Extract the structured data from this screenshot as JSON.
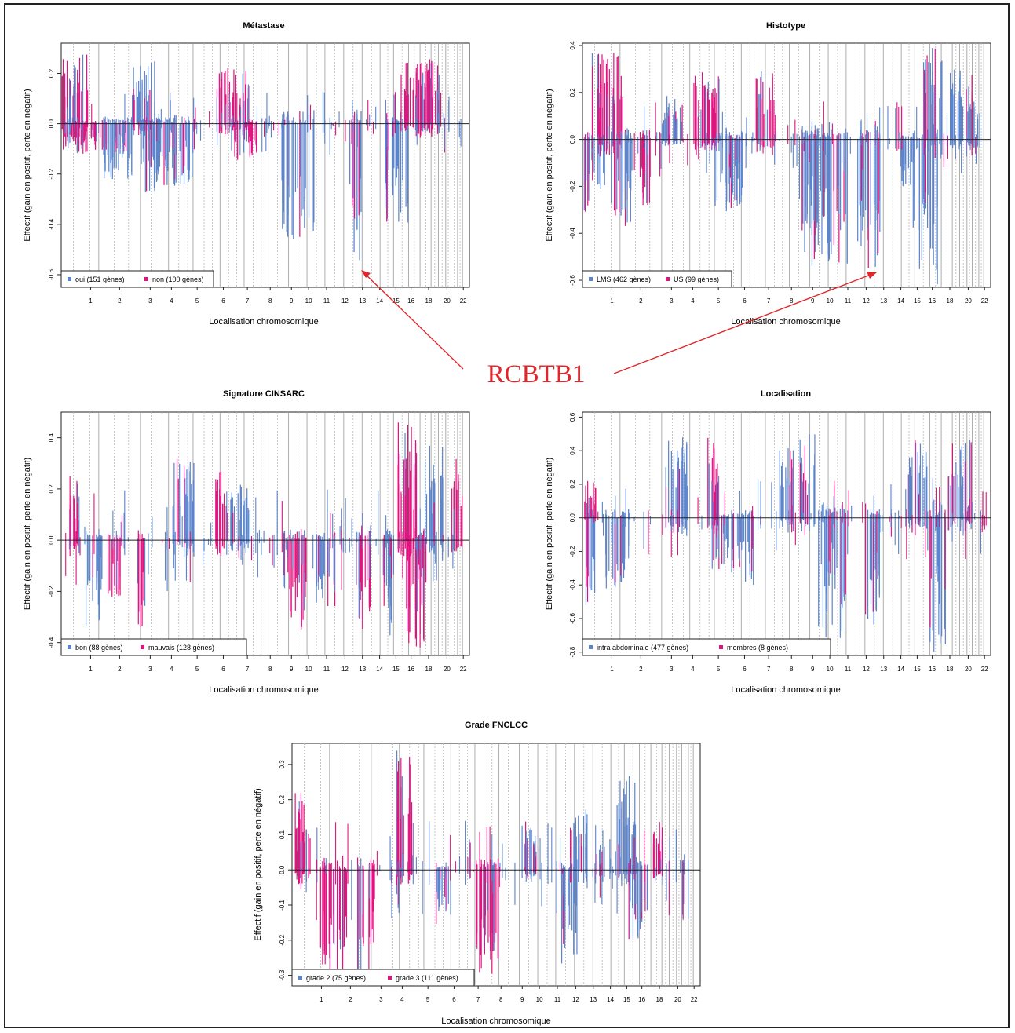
{
  "chart_data": [
    {
      "type": "bar",
      "title": "Métastase",
      "xlabel": "Localisation chromosomique",
      "ylabel": "Effectif (gain en positif, perte en négatif)",
      "ylim": [
        -0.65,
        0.32
      ],
      "yticks": [
        -0.6,
        -0.4,
        -0.2,
        0.0,
        0.2
      ],
      "ytick_labels": [
        "-0.6",
        "-0.4",
        "-0.2",
        "0.0",
        "0.2"
      ],
      "xticks": [
        "1",
        "2",
        "3",
        "4",
        "5",
        "6",
        "7",
        "8",
        "9",
        "10",
        "11",
        "12",
        "13",
        "14",
        "15",
        "16",
        "18",
        "20",
        "22"
      ],
      "legend": "bottom-left",
      "series": [
        {
          "name": "oui (151 gènes)",
          "color": "#5b84cc"
        },
        {
          "name": "non (100 gènes)",
          "color": "#e0147f"
        }
      ],
      "annotated_gene_value": -0.6
    },
    {
      "type": "bar",
      "title": "Histotype",
      "xlabel": "Localisation chromosomique",
      "ylabel": "Effectif (gain en positif, perte en négatif)",
      "ylim": [
        -0.63,
        0.41
      ],
      "yticks": [
        -0.6,
        -0.4,
        -0.2,
        0.0,
        0.2,
        0.4
      ],
      "ytick_labels": [
        "-0.6",
        "-0.4",
        "-0.2",
        "0.0",
        "0.2",
        "0.4"
      ],
      "xticks": [
        "1",
        "2",
        "3",
        "4",
        "5",
        "6",
        "7",
        "8",
        "9",
        "10",
        "11",
        "12",
        "13",
        "14",
        "15",
        "16",
        "18",
        "20",
        "22"
      ],
      "legend": "bottom-left",
      "series": [
        {
          "name": "LMS (462 gènes)",
          "color": "#5b84cc"
        },
        {
          "name": "US (99 gènes)",
          "color": "#e0147f"
        }
      ],
      "annotated_gene_value": -0.57
    },
    {
      "type": "bar",
      "title": "Signature CINSARC",
      "xlabel": "Localisation chromosomique",
      "ylabel": "Effectif (gain en positif, perte en négatif)",
      "ylim": [
        -0.45,
        0.5
      ],
      "yticks": [
        -0.4,
        -0.2,
        0.0,
        0.2,
        0.4
      ],
      "ytick_labels": [
        "-0.4",
        "-0.2",
        "0.0",
        "0.2",
        "0.4"
      ],
      "xticks": [
        "1",
        "2",
        "3",
        "4",
        "5",
        "6",
        "7",
        "8",
        "9",
        "10",
        "11",
        "12",
        "13",
        "14",
        "15",
        "16",
        "18",
        "20",
        "22"
      ],
      "legend": "bottom-left",
      "series": [
        {
          "name": "bon (88 gènes)",
          "color": "#5b84cc"
        },
        {
          "name": "mauvais (128 gènes)",
          "color": "#e0147f"
        }
      ]
    },
    {
      "type": "bar",
      "title": "Localisation",
      "xlabel": "Localisation chromosomique",
      "ylabel": "Effectif (gain en positif, perte en négatif)",
      "ylim": [
        -0.82,
        0.63
      ],
      "yticks": [
        -0.8,
        -0.6,
        -0.4,
        -0.2,
        0.0,
        0.2,
        0.4,
        0.6
      ],
      "ytick_labels": [
        "-0.8",
        "-0.6",
        "-0.4",
        "-0.2",
        "0.0",
        "0.2",
        "0.4",
        "0.6"
      ],
      "xticks": [
        "1",
        "2",
        "3",
        "4",
        "5",
        "6",
        "7",
        "8",
        "9",
        "10",
        "11",
        "12",
        "13",
        "14",
        "15",
        "16",
        "18",
        "20",
        "22"
      ],
      "legend": "bottom-left",
      "series": [
        {
          "name": "intra abdominale (477 gènes)",
          "color": "#5b84cc"
        },
        {
          "name": "membres (8 gènes)",
          "color": "#e0147f"
        }
      ]
    },
    {
      "type": "bar",
      "title": "Grade FNCLCC",
      "xlabel": "Localisation chromosomique",
      "ylabel": "Effectif (gain en positif, perte en négatif)",
      "ylim": [
        -0.33,
        0.36
      ],
      "yticks": [
        -0.3,
        -0.2,
        -0.1,
        0.0,
        0.1,
        0.2,
        0.3
      ],
      "ytick_labels": [
        "-0.3",
        "-0.2",
        "-0.1",
        "0.0",
        "0.1",
        "0.2",
        "0.3"
      ],
      "xticks": [
        "1",
        "2",
        "3",
        "4",
        "5",
        "6",
        "7",
        "8",
        "9",
        "10",
        "11",
        "12",
        "13",
        "14",
        "15",
        "16",
        "18",
        "20",
        "22"
      ],
      "legend": "bottom-left",
      "series": [
        {
          "name": "grade 2 (75 gènes)",
          "color": "#5b84cc"
        },
        {
          "name": "grade 3 (111 gènes)",
          "color": "#e0147f"
        }
      ]
    }
  ],
  "annotation": {
    "label": "RCBTB1",
    "color": "#e0262b"
  },
  "colors": {
    "blue": "#5b84cc",
    "magenta": "#e0147f",
    "arrow": "#e0262b"
  }
}
